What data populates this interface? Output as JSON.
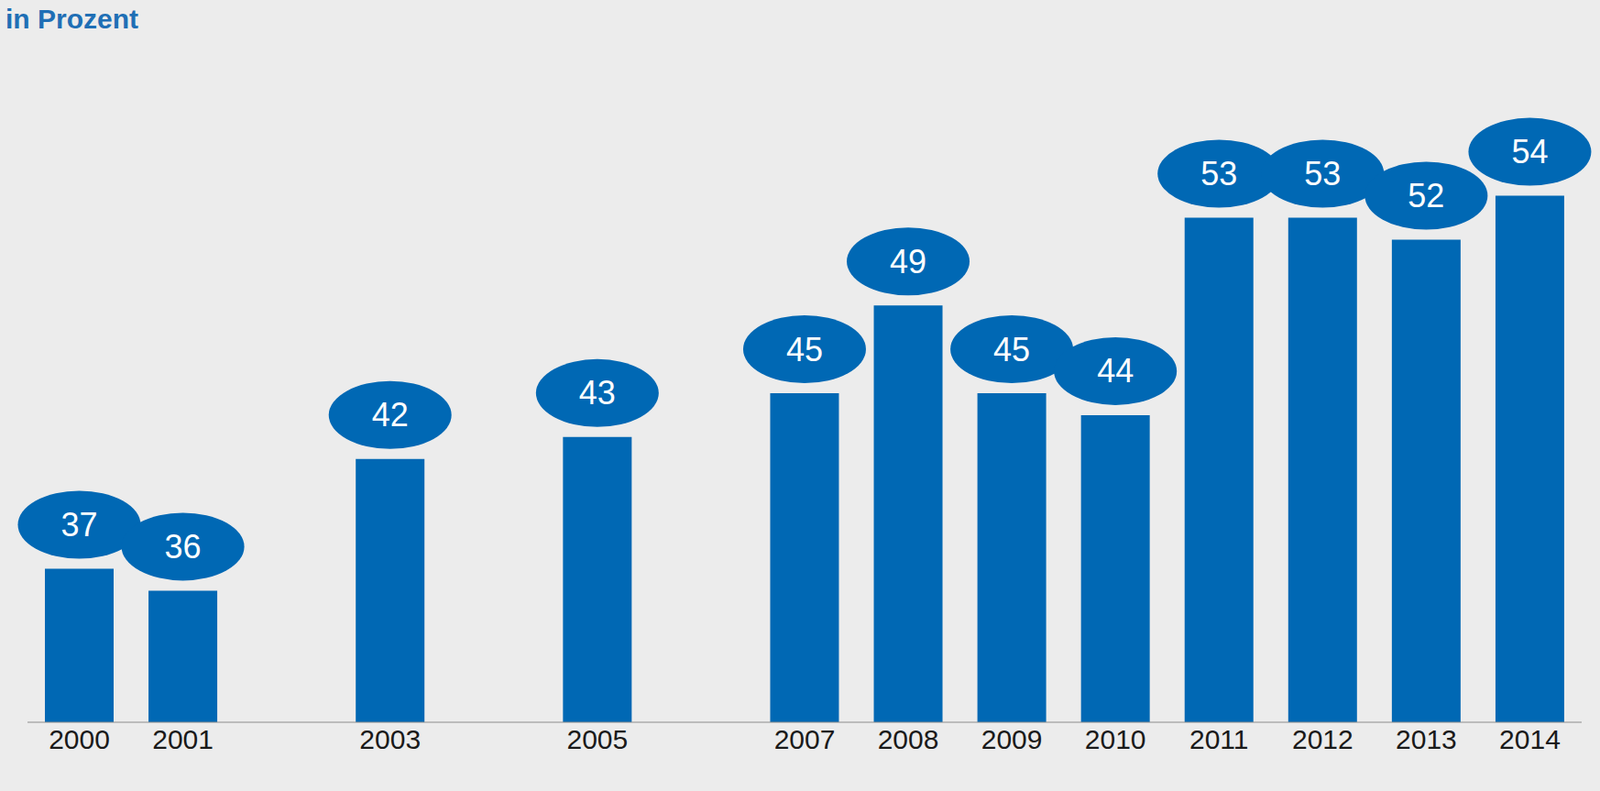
{
  "chart_data": {
    "type": "bar",
    "title": "in Prozent",
    "categories": [
      "2000",
      "2001",
      null,
      "2003",
      null,
      "2005",
      null,
      "2007",
      "2008",
      "2009",
      "2010",
      "2011",
      "2012",
      "2013",
      "2014"
    ],
    "values": [
      37,
      36,
      null,
      42,
      null,
      43,
      null,
      45,
      49,
      45,
      44,
      53,
      53,
      52,
      54
    ],
    "color": "#0068b4",
    "ylim": [
      30,
      60
    ],
    "yticks": [
      30,
      60
    ],
    "grid": false,
    "data_labels": true,
    "tick_labels": "x"
  }
}
